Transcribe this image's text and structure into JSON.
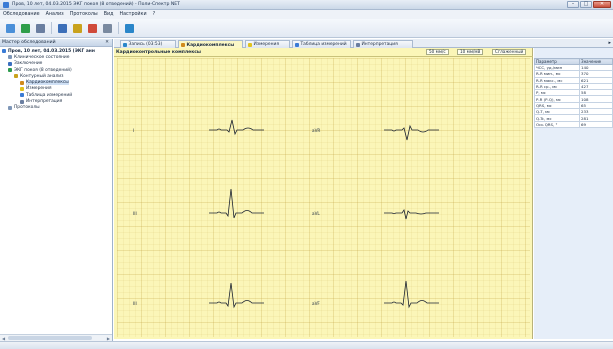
{
  "window": {
    "title": "Пров, 10 лет, 04.03.2015 ЭКГ покоя (8 отведений) - Поли-Спектр NET"
  },
  "menubar": [
    "Обследование",
    "Анализ",
    "Протоколы",
    "Вид",
    "Настройки",
    "?"
  ],
  "toolbar": {
    "buttons": [
      {
        "icon": "open-folder-icon",
        "color": "#4a8fd8"
      },
      {
        "icon": "record-icon",
        "color": "#2f9e4a"
      },
      {
        "icon": "print-icon",
        "color": "#6a7ea0"
      },
      {
        "icon": "save-icon",
        "color": "#3c6fb8"
      },
      {
        "icon": "report-icon",
        "color": "#c9a21c"
      },
      {
        "icon": "ecg-view-icon",
        "color": "#d04a3a"
      },
      {
        "icon": "settings-icon",
        "color": "#7a8aa0"
      },
      {
        "icon": "wave-icon",
        "color": "#2a86c9"
      }
    ]
  },
  "left_panel": {
    "title": "Мастер обследований",
    "close": "✕",
    "tree": [
      {
        "label": "Пров, 10 лет, 04.03.2015 (ЭКГ анн",
        "indent": 0,
        "bold": true,
        "icon_color": "#3a7bd5"
      },
      {
        "label": "Клиническое состояние",
        "indent": 1,
        "bold": false,
        "icon_color": "#7f97b8"
      },
      {
        "label": "Заключение",
        "indent": 1,
        "bold": false,
        "icon_color": "#3a6fbf"
      },
      {
        "label": "ЭКГ покоя (8 отведений)",
        "indent": 1,
        "bold": false,
        "icon_color": "#2e9b4e"
      },
      {
        "label": "Контурный анализ",
        "indent": 2,
        "bold": false,
        "icon_color": "#c9a21c"
      },
      {
        "label": "Кардиокомплексы",
        "indent": 3,
        "bold": false,
        "icon_color": "#d08a1c",
        "selected": true
      },
      {
        "label": "Измерения",
        "indent": 3,
        "bold": false,
        "icon_color": "#e0c21c"
      },
      {
        "label": "Таблица измерений",
        "indent": 3,
        "bold": false,
        "icon_color": "#3a7bd5"
      },
      {
        "label": "Интерпретация",
        "indent": 3,
        "bold": false,
        "icon_color": "#6a7ea0"
      },
      {
        "label": "Протоколы",
        "indent": 1,
        "bold": false,
        "icon_color": "#7f97b8"
      }
    ]
  },
  "tabs": [
    {
      "label": "Запись (03:53)",
      "active": false,
      "icon_color": "#2a86c9"
    },
    {
      "label": "Кардиокомплексы",
      "active": true,
      "icon_color": "#d08a1c"
    },
    {
      "label": "Измерения",
      "active": false,
      "icon_color": "#e0c21c"
    },
    {
      "label": "Таблица измерений",
      "active": false,
      "icon_color": "#3a7bd5"
    },
    {
      "label": "Интерпретация",
      "active": false,
      "icon_color": "#6a7ea0"
    }
  ],
  "complexes": {
    "title": "Кардиоконтрольные комплексы",
    "gain": "50 мм/с",
    "amplitude": "10 мм/мВ",
    "mode": "Сглаженный",
    "leads": [
      "I",
      "aVR",
      "III",
      "aVL",
      "III",
      "aVF"
    ]
  },
  "measurements": {
    "headers": [
      "Параметр",
      "Значение"
    ],
    "rows": [
      [
        "ЧСС, уд./мин",
        "140"
      ],
      [
        "R-R мин., мс",
        "370"
      ],
      [
        "R-R макс., мс",
        "621"
      ],
      [
        "R-R ср., мс",
        "427"
      ],
      [
        "P, мс",
        "58"
      ],
      [
        "P-R (P-Q), мс",
        "108"
      ],
      [
        "QRS, мс",
        "65"
      ],
      [
        "Q-T, мс",
        "233"
      ],
      [
        "Q-Tc, мс",
        "281"
      ],
      [
        "Ось QRS, °",
        "69"
      ]
    ]
  },
  "status": {
    "text": ""
  },
  "colors": {
    "ecg_paper": "#fbf6b8",
    "ecg_trace": "#1a2230",
    "window_accent": "#3a7bd5"
  }
}
